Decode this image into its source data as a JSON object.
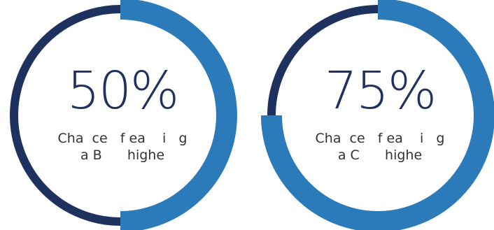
{
  "colors": {
    "dark_navy": "#1f325f",
    "accent_blue": "#2b7bbb",
    "text": "#1f325f",
    "caption_text": "#333333",
    "background": "#ffffff"
  },
  "rings": [
    {
      "value_percent": 50,
      "value_label": "50%",
      "caption_line_1": "Cha  ce   f ea    i   g",
      "caption_line_2": "a B      highe"
    },
    {
      "value_percent": 75,
      "value_label": "75%",
      "caption_line_1": "Cha  ce   f ea    i   g",
      "caption_line_2": "a C      highe"
    }
  ]
}
